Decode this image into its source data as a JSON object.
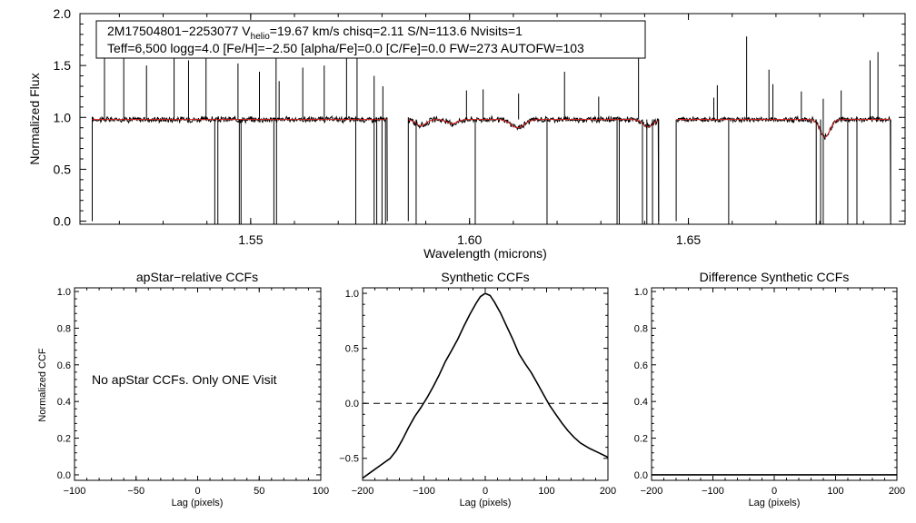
{
  "chart_data": [
    {
      "id": "spectrum",
      "type": "line",
      "title": "",
      "xlabel": "Wavelength (microns)",
      "ylabel": "Normalized Flux",
      "xlim": [
        1.511,
        1.6995
      ],
      "ylim": [
        -0.03,
        2.0
      ],
      "xticks": [
        1.55,
        1.6,
        1.65
      ],
      "xtick_labels": [
        "1.55",
        "1.60",
        "1.65"
      ],
      "yticks": [
        0.0,
        0.5,
        1.0,
        1.5,
        2.0
      ],
      "ytick_labels": [
        "0.0",
        "0.5",
        "1.0",
        "1.5",
        "2.0"
      ],
      "annotation": {
        "line1_prefix": "2M17504801−2253077  V",
        "line1_sub": "helio",
        "line1_suffix": "=19.67 km/s  chisq=2.11  S/N=113.6  Nvisits=1",
        "line2": "Teff=6,500 logg=4.0 [Fe/H]=−2.50 [alpha/Fe]=0.0 [C/Fe]=0.0 FW=273 AUTOFW=103"
      },
      "chips": [
        [
          1.5138,
          1.5812
        ],
        [
          1.586,
          1.6432
        ],
        [
          1.6472,
          1.6962
        ]
      ],
      "continuum": 0.98,
      "absorption_features": [
        {
          "center": 1.5889,
          "depth": 0.06,
          "width": 0.0012
        },
        {
          "center": 1.596,
          "depth": 0.04,
          "width": 0.0012
        },
        {
          "center": 1.611,
          "depth": 0.08,
          "width": 0.0015
        },
        {
          "center": 1.6408,
          "depth": 0.07,
          "width": 0.0012
        },
        {
          "center": 1.6812,
          "depth": 0.17,
          "width": 0.0011
        }
      ],
      "spikes": [
        {
          "x": 1.5166,
          "y": 1.78
        },
        {
          "x": 1.521,
          "y": 1.75
        },
        {
          "x": 1.5262,
          "y": 1.5
        },
        {
          "x": 1.5325,
          "y": 1.78
        },
        {
          "x": 1.5358,
          "y": 1.55
        },
        {
          "x": 1.5398,
          "y": 1.75
        },
        {
          "x": 1.5471,
          "y": 1.52
        },
        {
          "x": 1.552,
          "y": 1.44
        },
        {
          "x": 1.5558,
          "y": 1.7
        },
        {
          "x": 1.5565,
          "y": 1.35
        },
        {
          "x": 1.5619,
          "y": 1.48
        },
        {
          "x": 1.5668,
          "y": 1.5
        },
        {
          "x": 1.5719,
          "y": 1.62
        },
        {
          "x": 1.5743,
          "y": 1.8
        },
        {
          "x": 1.5782,
          "y": 1.4
        },
        {
          "x": 1.5802,
          "y": 1.3
        },
        {
          "x": 1.5993,
          "y": 1.26
        },
        {
          "x": 1.6031,
          "y": 1.27
        },
        {
          "x": 1.6112,
          "y": 1.23
        },
        {
          "x": 1.6217,
          "y": 1.44
        },
        {
          "x": 1.6295,
          "y": 1.2
        },
        {
          "x": 1.6386,
          "y": 1.8
        },
        {
          "x": 1.6558,
          "y": 1.19
        },
        {
          "x": 1.6566,
          "y": 1.31
        },
        {
          "x": 1.6633,
          "y": 1.78
        },
        {
          "x": 1.6684,
          "y": 1.46
        },
        {
          "x": 1.6693,
          "y": 1.32
        },
        {
          "x": 1.6758,
          "y": 1.25
        },
        {
          "x": 1.6808,
          "y": 1.18
        },
        {
          "x": 1.6849,
          "y": 1.26
        },
        {
          "x": 1.6915,
          "y": 1.55
        },
        {
          "x": 1.6933,
          "y": 1.63
        }
      ],
      "dips": [
        1.5418,
        1.5425,
        1.5474,
        1.5478,
        1.5553,
        1.5559,
        1.574,
        1.5782,
        1.5788,
        1.58,
        1.5808,
        1.5878,
        1.6013,
        1.6177,
        1.6337,
        1.6342,
        1.6395,
        1.6405,
        1.6418,
        1.6432,
        1.6592,
        1.6792,
        1.6802,
        1.6808,
        1.6864,
        1.6885,
        1.6962
      ],
      "series": [
        {
          "name": "observed spectrum",
          "color": "#000000"
        },
        {
          "name": "best-fit model",
          "color": "#e02020"
        }
      ]
    },
    {
      "id": "apstar-ccf",
      "type": "line",
      "title": "apStar−relative CCFs",
      "xlabel": "Lag (pixels)",
      "ylabel": "Normalized CCF",
      "xlim": [
        -100,
        100
      ],
      "ylim": [
        -0.03,
        1.02
      ],
      "xticks": [
        -100,
        -50,
        0,
        50,
        100
      ],
      "xtick_labels": [
        "−100",
        "−50",
        "0",
        "50",
        "100"
      ],
      "yticks": [
        0.0,
        0.2,
        0.4,
        0.6,
        0.8,
        1.0
      ],
      "ytick_labels": [
        "0.0",
        "0.2",
        "0.4",
        "0.6",
        "0.8",
        "1.0"
      ],
      "message": "No apStar CCFs.  Only ONE Visit",
      "series": []
    },
    {
      "id": "synthetic-ccf",
      "type": "line",
      "title": "Synthetic CCFs",
      "xlabel": "Lag (pixels)",
      "ylabel": "",
      "xlim": [
        -200,
        200
      ],
      "ylim": [
        -0.7,
        1.05
      ],
      "xticks": [
        -200,
        -100,
        0,
        100,
        200
      ],
      "xtick_labels": [
        "−200",
        "−100",
        "0",
        "100",
        "200"
      ],
      "yticks": [
        -0.5,
        0.0,
        0.5,
        1.0
      ],
      "ytick_labels": [
        "−0.5",
        "0.0",
        "0.5",
        "1.0"
      ],
      "reference_line": 0.0,
      "series": [
        {
          "name": "synthetic CCF",
          "color": "#000000",
          "x": [
            -200,
            -185,
            -170,
            -155,
            -145,
            -135,
            -125,
            -115,
            -105,
            -95,
            -85,
            -75,
            -65,
            -55,
            -45,
            -35,
            -25,
            -15,
            -8,
            0,
            8,
            15,
            25,
            35,
            45,
            55,
            65,
            75,
            85,
            95,
            105,
            115,
            125,
            135,
            145,
            155,
            170,
            185,
            200
          ],
          "y": [
            -0.68,
            -0.62,
            -0.56,
            -0.5,
            -0.43,
            -0.33,
            -0.22,
            -0.12,
            -0.04,
            0.05,
            0.15,
            0.26,
            0.38,
            0.48,
            0.58,
            0.7,
            0.81,
            0.91,
            0.97,
            1.0,
            0.98,
            0.92,
            0.82,
            0.7,
            0.58,
            0.45,
            0.36,
            0.28,
            0.18,
            0.08,
            -0.02,
            -0.1,
            -0.18,
            -0.25,
            -0.31,
            -0.36,
            -0.41,
            -0.45,
            -0.49
          ]
        }
      ]
    },
    {
      "id": "difference-ccf",
      "type": "line",
      "title": "Difference Synthetic CCFs",
      "xlabel": "Lag (pixels)",
      "ylabel": "",
      "xlim": [
        -200,
        200
      ],
      "ylim": [
        -0.03,
        1.02
      ],
      "xticks": [
        -200,
        -100,
        0,
        100,
        200
      ],
      "xtick_labels": [
        "−200",
        "−100",
        "0",
        "100",
        "200"
      ],
      "yticks": [
        0.0,
        0.2,
        0.4,
        0.6,
        0.8,
        1.0
      ],
      "ytick_labels": [
        "0.0",
        "0.2",
        "0.4",
        "0.6",
        "0.8",
        "1.0"
      ],
      "series": [
        {
          "name": "difference CCF",
          "color": "#000000",
          "x": [
            -200,
            200
          ],
          "y": [
            0.0,
            0.0
          ]
        }
      ]
    }
  ]
}
